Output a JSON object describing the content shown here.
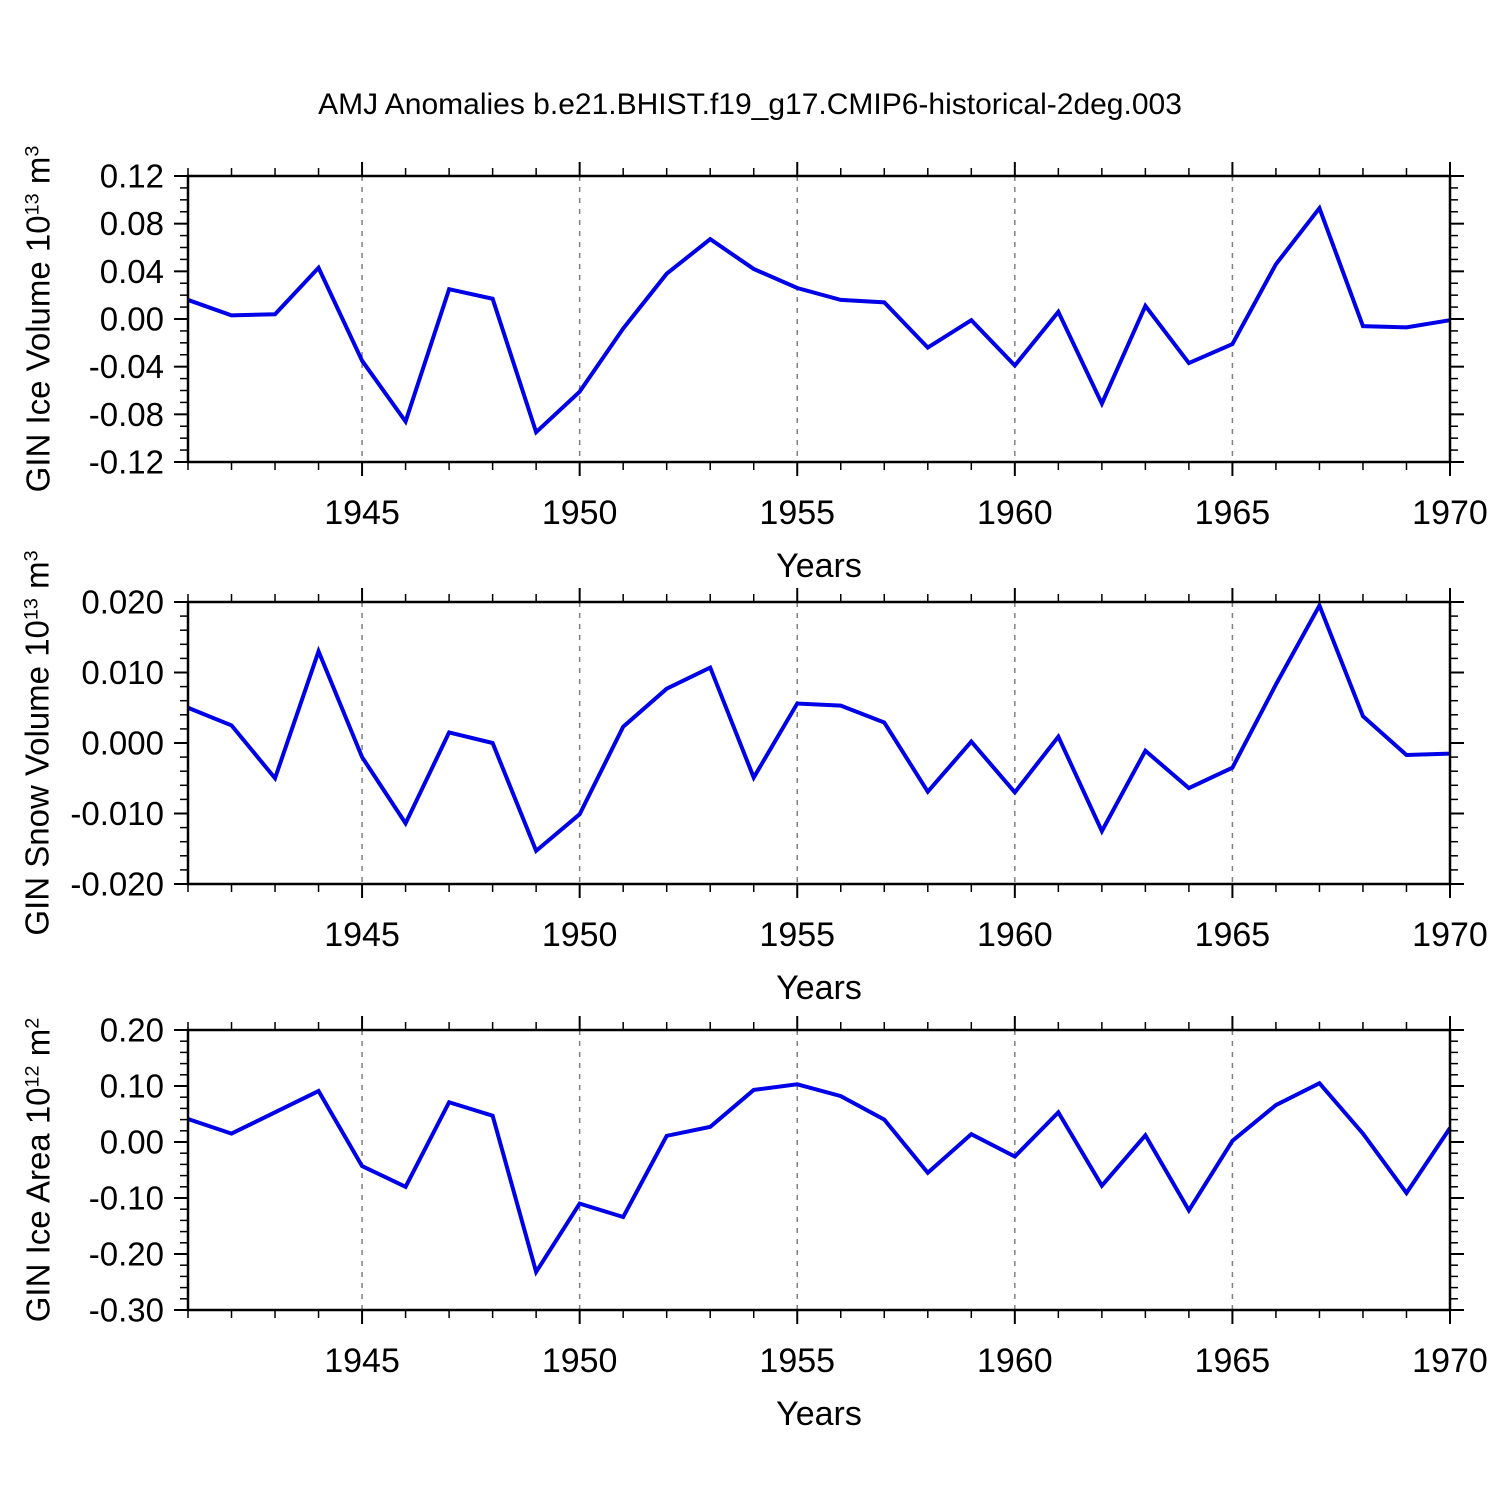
{
  "title": "AMJ Anomalies b.e21.BHIST.f19_g17.CMIP6-historical-2deg.003",
  "colors": {
    "line": "#0000E8",
    "gridline": "#808080",
    "frame": "#000000",
    "text": "#000000",
    "background": "#FFFFFF"
  },
  "axis": {
    "xlabel": "Years",
    "x_min": 1941,
    "x_max": 1970,
    "x_minor_step": 1,
    "x_major_ticks": [
      1945,
      1950,
      1955,
      1960,
      1965,
      1970
    ],
    "x_tick_labels": [
      "1945",
      "1950",
      "1955",
      "1960",
      "1965",
      "1970"
    ],
    "gridline_years": [
      1945,
      1950,
      1955,
      1960,
      1965
    ],
    "grid_style": "dashed-vertical"
  },
  "chart_data": [
    {
      "type": "line",
      "name": "gin-ice-volume",
      "xlabel": "Years",
      "ylabel": "GIN Ice Volume 10^13 m^3",
      "ylabel_parts": {
        "pre": "GIN Ice Volume 10",
        "sup1": "13",
        "mid": " m",
        "sup2": "3"
      },
      "ylim": [
        -0.12,
        0.12
      ],
      "ytick_labels": [
        "0.12",
        "0.08",
        "0.04",
        "0.00",
        "-0.04",
        "-0.08",
        "-0.12"
      ],
      "y_minor_step": 0.01,
      "legend": "none",
      "years": [
        1941,
        1942,
        1943,
        1944,
        1945,
        1946,
        1947,
        1948,
        1949,
        1950,
        1951,
        1952,
        1953,
        1954,
        1955,
        1956,
        1957,
        1958,
        1959,
        1960,
        1961,
        1962,
        1963,
        1964,
        1965,
        1966,
        1967,
        1968,
        1969,
        1970
      ],
      "values": [
        0.016,
        0.003,
        0.004,
        0.043,
        -0.035,
        -0.086,
        0.025,
        0.017,
        -0.095,
        -0.061,
        -0.008,
        0.038,
        0.067,
        0.042,
        0.026,
        0.016,
        0.014,
        -0.024,
        -0.001,
        -0.039,
        0.006,
        -0.071,
        0.011,
        -0.037,
        -0.021,
        0.046,
        0.093,
        -0.006,
        -0.007,
        -0.001
      ]
    },
    {
      "type": "line",
      "name": "gin-snow-volume",
      "xlabel": "Years",
      "ylabel": "GIN Snow Volume 10^13 m^3",
      "ylabel_parts": {
        "pre": "GIN Snow Volume 10",
        "sup1": "13",
        "mid": " m",
        "sup2": "3"
      },
      "ylim": [
        -0.02,
        0.02
      ],
      "ytick_labels": [
        "0.020",
        "0.010",
        "0.000",
        "-0.010",
        "-0.020"
      ],
      "y_minor_step": 0.002,
      "legend": "none",
      "years": [
        1941,
        1942,
        1943,
        1944,
        1945,
        1946,
        1947,
        1948,
        1949,
        1950,
        1951,
        1952,
        1953,
        1954,
        1955,
        1956,
        1957,
        1958,
        1959,
        1960,
        1961,
        1962,
        1963,
        1964,
        1965,
        1966,
        1967,
        1968,
        1969,
        1970
      ],
      "values": [
        0.005,
        0.0025,
        -0.005,
        0.013,
        -0.002,
        -0.0114,
        0.0015,
        0.0,
        -0.0153,
        -0.0101,
        0.0023,
        0.0077,
        0.0107,
        -0.0049,
        0.0056,
        0.0053,
        0.0029,
        -0.0069,
        0.0002,
        -0.007,
        0.0009,
        -0.0125,
        -0.0011,
        -0.0064,
        -0.0035,
        0.0083,
        0.0195,
        0.0038,
        -0.0017,
        -0.0015
      ]
    },
    {
      "type": "line",
      "name": "gin-ice-area",
      "xlabel": "Years",
      "ylabel": "GIN Ice Area 10^12 m^2",
      "ylabel_parts": {
        "pre": "GIN Ice Area 10",
        "sup1": "12",
        "mid": " m",
        "sup2": "2"
      },
      "ylim": [
        -0.3,
        0.2
      ],
      "ytick_labels": [
        "0.20",
        "0.10",
        "0.00",
        "-0.10",
        "-0.20",
        "-0.30"
      ],
      "y_minor_step": 0.02,
      "legend": "none",
      "years": [
        1941,
        1942,
        1943,
        1944,
        1945,
        1946,
        1947,
        1948,
        1949,
        1950,
        1951,
        1952,
        1953,
        1954,
        1955,
        1956,
        1957,
        1958,
        1959,
        1960,
        1961,
        1962,
        1963,
        1964,
        1965,
        1966,
        1967,
        1968,
        1969,
        1970
      ],
      "values": [
        0.041,
        0.015,
        0.053,
        0.091,
        -0.043,
        -0.08,
        0.071,
        0.047,
        -0.232,
        -0.11,
        -0.134,
        0.011,
        0.027,
        0.093,
        0.103,
        0.082,
        0.04,
        -0.055,
        0.014,
        -0.026,
        0.053,
        -0.078,
        0.012,
        -0.122,
        0.002,
        0.066,
        0.105,
        0.015,
        -0.091,
        0.025
      ]
    }
  ]
}
